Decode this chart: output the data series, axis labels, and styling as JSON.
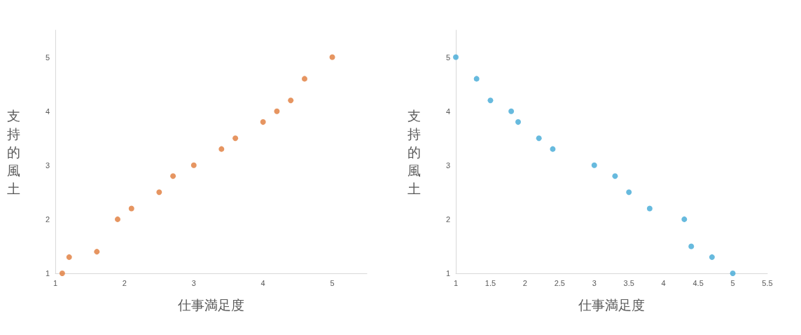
{
  "chart_data": [
    {
      "type": "scatter",
      "xlabel": "仕事満足度",
      "ylabel": "支持的風土",
      "marker": "circle",
      "grid": false,
      "xlim": [
        1,
        5.5
      ],
      "xticks": [
        1,
        2,
        3,
        4,
        5
      ],
      "ylim": [
        1,
        5.5
      ],
      "yticks": [
        1,
        2,
        3,
        4,
        5
      ],
      "x": [
        1.1,
        1.2,
        1.6,
        1.9,
        2.1,
        2.5,
        2.7,
        3.0,
        3.4,
        3.6,
        4.0,
        4.2,
        4.4,
        4.6,
        5.0
      ],
      "series": [
        {
          "color": "#e07b39",
          "values": [
            1.0,
            1.3,
            1.4,
            2.0,
            2.2,
            2.5,
            2.8,
            3.0,
            3.3,
            3.5,
            3.8,
            4.0,
            4.2,
            4.6,
            5.0
          ]
        }
      ]
    },
    {
      "type": "scatter",
      "xlabel": "仕事満足度",
      "ylabel": "支持的風土",
      "marker": "circle",
      "grid": false,
      "xlim": [
        1,
        5.5
      ],
      "xticks": [
        1,
        1.5,
        2,
        2.5,
        3,
        3.5,
        4,
        4.5,
        5,
        5.5
      ],
      "ylim": [
        1,
        5.5
      ],
      "yticks": [
        1,
        2,
        3,
        4,
        5
      ],
      "x": [
        1.0,
        1.3,
        1.5,
        1.8,
        1.9,
        2.2,
        2.4,
        3.0,
        3.3,
        3.5,
        3.8,
        4.3,
        4.4,
        4.7,
        5.0
      ],
      "series": [
        {
          "color": "#41a9d6",
          "values": [
            5.0,
            4.6,
            4.2,
            4.0,
            3.8,
            3.5,
            3.3,
            3.0,
            2.8,
            2.5,
            2.2,
            2.0,
            1.5,
            1.3,
            1.0
          ]
        }
      ]
    }
  ]
}
